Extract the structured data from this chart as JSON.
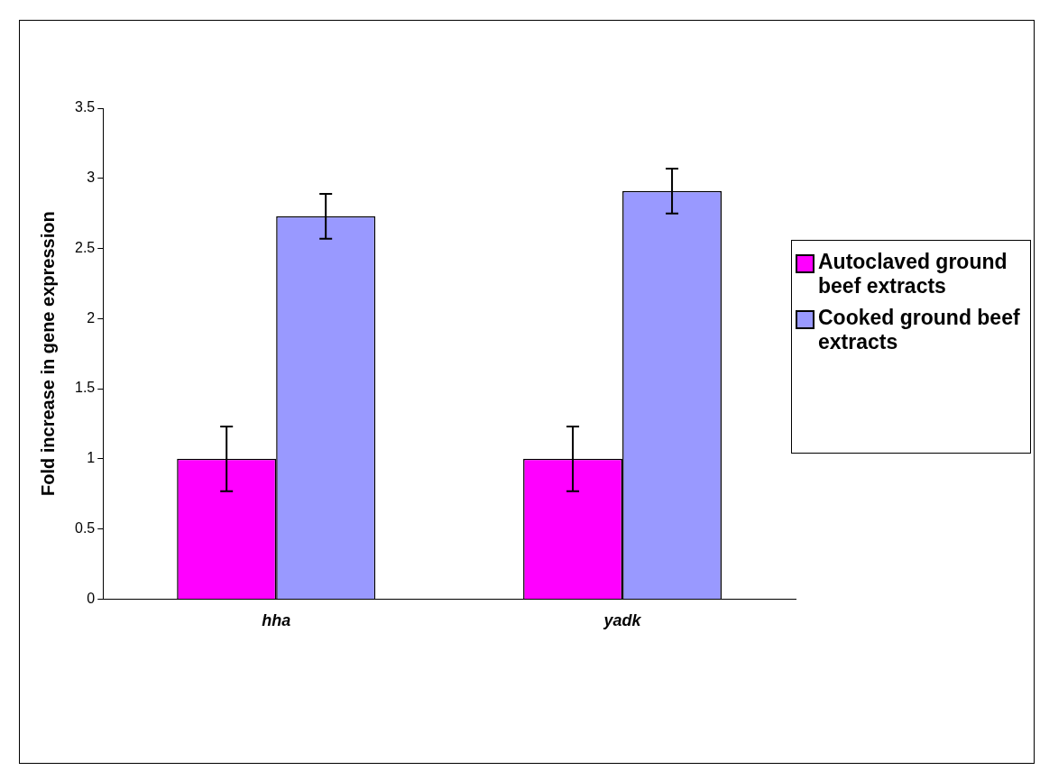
{
  "chart_data": {
    "type": "bar",
    "ylabel": "Fold increase in gene expression",
    "categories": [
      "hha",
      "yadk"
    ],
    "series": [
      {
        "name": "Autoclaved ground beef extracts",
        "color": "#ff00ff",
        "values": [
          1,
          1
        ],
        "errors": [
          0.23,
          0.23
        ]
      },
      {
        "name": "Cooked ground beef extracts",
        "color": "#9999ff",
        "values": [
          2.73,
          2.91
        ],
        "errors": [
          0.16,
          0.16
        ]
      }
    ],
    "ylim": [
      0,
      3.5
    ],
    "yticks": [
      0,
      0.5,
      1,
      1.5,
      2,
      2.5,
      3,
      3.5
    ],
    "grid": false,
    "legend": "right"
  }
}
